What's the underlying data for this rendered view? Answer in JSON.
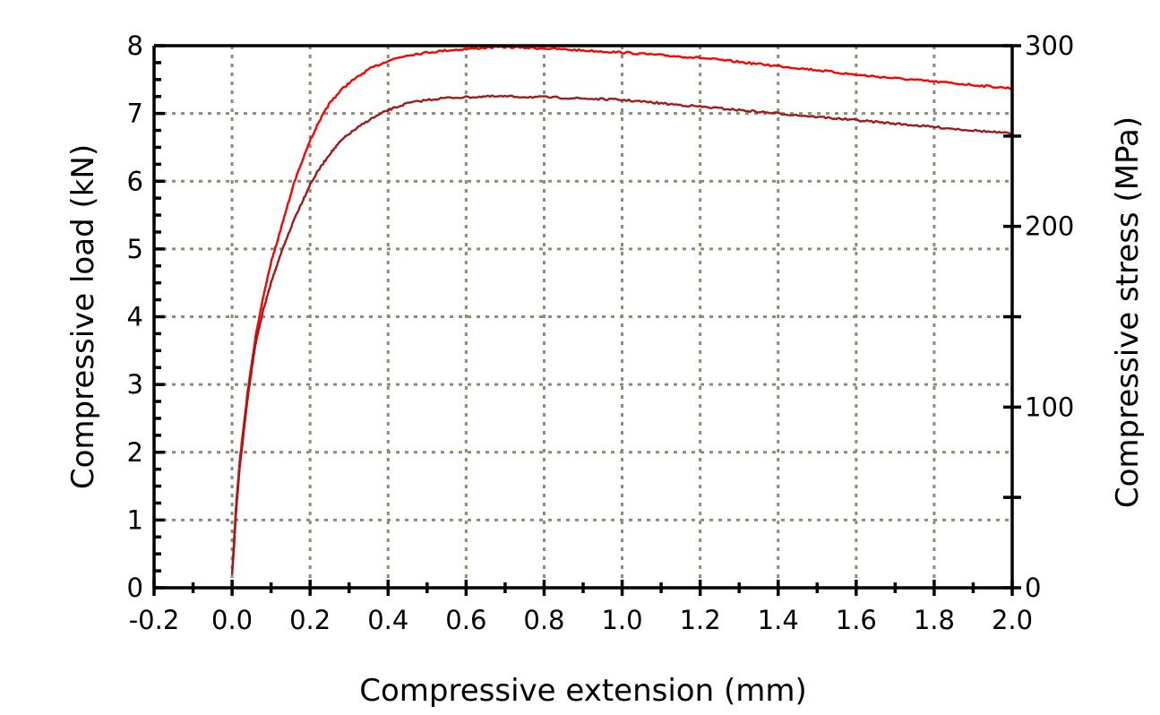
{
  "chart_data": {
    "type": "line",
    "xlabel": "Compressive extension (mm)",
    "ylabel": "Compressive load (kN)",
    "y2label": "Compressive stress (MPa)",
    "xlim": [
      -0.2,
      2.0
    ],
    "ylim": [
      0,
      8
    ],
    "y2lim": [
      0,
      300
    ],
    "x_ticks": [
      "-0.2",
      "0.0",
      "0.2",
      "0.4",
      "0.6",
      "0.8",
      "1.0",
      "1.2",
      "1.4",
      "1.6",
      "1.8",
      "2.0"
    ],
    "y_ticks": [
      "0",
      "1",
      "2",
      "3",
      "4",
      "5",
      "6",
      "7",
      "8"
    ],
    "y2_ticks": [
      "0",
      "100",
      "200",
      "300"
    ],
    "grid": true,
    "series": [
      {
        "color": "#ff0000",
        "x": [
          0.0,
          0.005,
          0.01,
          0.02,
          0.03,
          0.04,
          0.05,
          0.06,
          0.08,
          0.1,
          0.12,
          0.14,
          0.16,
          0.18,
          0.2,
          0.22,
          0.25,
          0.28,
          0.3,
          0.35,
          0.4,
          0.45,
          0.5,
          0.55,
          0.6,
          0.65,
          0.7,
          0.8,
          0.9,
          1.0,
          1.1,
          1.2,
          1.3,
          1.4,
          1.5,
          1.6,
          1.7,
          1.8,
          1.9,
          2.0
        ],
        "values": [
          0.2,
          0.7,
          1.2,
          1.9,
          2.4,
          2.9,
          3.3,
          3.7,
          4.3,
          4.8,
          5.2,
          5.6,
          6.0,
          6.3,
          6.6,
          6.85,
          7.15,
          7.35,
          7.45,
          7.65,
          7.78,
          7.86,
          7.9,
          7.93,
          7.95,
          7.97,
          7.98,
          7.96,
          7.93,
          7.9,
          7.86,
          7.82,
          7.76,
          7.7,
          7.64,
          7.57,
          7.52,
          7.47,
          7.42,
          7.37
        ]
      },
      {
        "color": "#a01a1a",
        "x": [
          0.0,
          0.005,
          0.01,
          0.02,
          0.03,
          0.04,
          0.05,
          0.06,
          0.08,
          0.1,
          0.12,
          0.14,
          0.16,
          0.18,
          0.2,
          0.22,
          0.25,
          0.28,
          0.3,
          0.35,
          0.4,
          0.45,
          0.5,
          0.55,
          0.6,
          0.65,
          0.7,
          0.8,
          0.9,
          1.0,
          1.1,
          1.2,
          1.3,
          1.4,
          1.5,
          1.6,
          1.7,
          1.8,
          1.9,
          2.0
        ],
        "values": [
          0.2,
          0.6,
          1.1,
          1.8,
          2.3,
          2.8,
          3.2,
          3.6,
          4.1,
          4.5,
          4.85,
          5.15,
          5.45,
          5.7,
          5.95,
          6.15,
          6.4,
          6.6,
          6.7,
          6.9,
          7.05,
          7.15,
          7.2,
          7.23,
          7.24,
          7.25,
          7.25,
          7.24,
          7.22,
          7.2,
          7.15,
          7.1,
          7.05,
          7.0,
          6.95,
          6.9,
          6.85,
          6.8,
          6.75,
          6.7
        ]
      }
    ]
  }
}
